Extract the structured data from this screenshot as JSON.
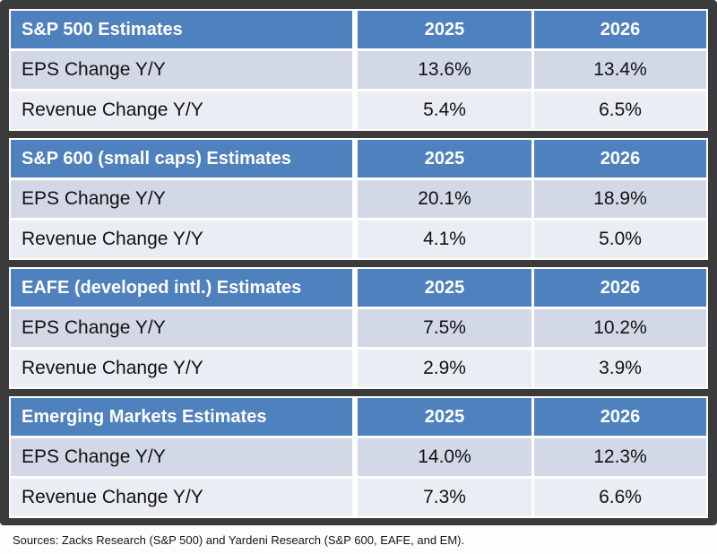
{
  "colors": {
    "frame_bg": "#3b3b3b",
    "header_bg": "#4e81bd",
    "header_text": "#ffffff",
    "row_band_bg": "#d2d8e6",
    "row_light_bg": "#eaedf3",
    "body_text": "#121212"
  },
  "columns": [
    "2025",
    "2026"
  ],
  "tables": [
    {
      "title": "S&P 500 Estimates",
      "rows": [
        {
          "label": "EPS Change Y/Y",
          "values": [
            "13.6%",
            "13.4%"
          ]
        },
        {
          "label": "Revenue Change Y/Y",
          "values": [
            "5.4%",
            "6.5%"
          ]
        }
      ]
    },
    {
      "title": "S&P 600 (small caps) Estimates",
      "rows": [
        {
          "label": "EPS Change Y/Y",
          "values": [
            "20.1%",
            "18.9%"
          ]
        },
        {
          "label": "Revenue Change Y/Y",
          "values": [
            "4.1%",
            "5.0%"
          ]
        }
      ]
    },
    {
      "title": "EAFE (developed intl.) Estimates",
      "rows": [
        {
          "label": "EPS Change Y/Y",
          "values": [
            "7.5%",
            "10.2%"
          ]
        },
        {
          "label": "Revenue Change Y/Y",
          "values": [
            "2.9%",
            "3.9%"
          ]
        }
      ]
    },
    {
      "title": "Emerging Markets Estimates",
      "rows": [
        {
          "label": "EPS Change Y/Y",
          "values": [
            "14.0%",
            "12.3%"
          ]
        },
        {
          "label": "Revenue Change Y/Y",
          "values": [
            "7.3%",
            "6.6%"
          ]
        }
      ]
    }
  ],
  "footer": {
    "sources": "Sources: Zacks Research (S&P 500) and Yardeni Research (S&P 600, EAFE, and EM)."
  },
  "chart_data": [
    {
      "type": "table",
      "title": "S&P 500 Estimates",
      "columns": [
        "",
        "2025",
        "2026"
      ],
      "rows": [
        [
          "EPS Change Y/Y",
          "13.6%",
          "13.4%"
        ],
        [
          "Revenue Change Y/Y",
          "5.4%",
          "6.5%"
        ]
      ]
    },
    {
      "type": "table",
      "title": "S&P 600 (small caps) Estimates",
      "columns": [
        "",
        "2025",
        "2026"
      ],
      "rows": [
        [
          "EPS Change Y/Y",
          "20.1%",
          "18.9%"
        ],
        [
          "Revenue Change Y/Y",
          "4.1%",
          "5.0%"
        ]
      ]
    },
    {
      "type": "table",
      "title": "EAFE (developed intl.) Estimates",
      "columns": [
        "",
        "2025",
        "2026"
      ],
      "rows": [
        [
          "EPS Change Y/Y",
          "7.5%",
          "10.2%"
        ],
        [
          "Revenue Change Y/Y",
          "2.9%",
          "3.9%"
        ]
      ]
    },
    {
      "type": "table",
      "title": "Emerging Markets Estimates",
      "columns": [
        "",
        "2025",
        "2026"
      ],
      "rows": [
        [
          "EPS Change Y/Y",
          "14.0%",
          "12.3%"
        ],
        [
          "Revenue Change Y/Y",
          "7.3%",
          "6.6%"
        ]
      ]
    }
  ]
}
